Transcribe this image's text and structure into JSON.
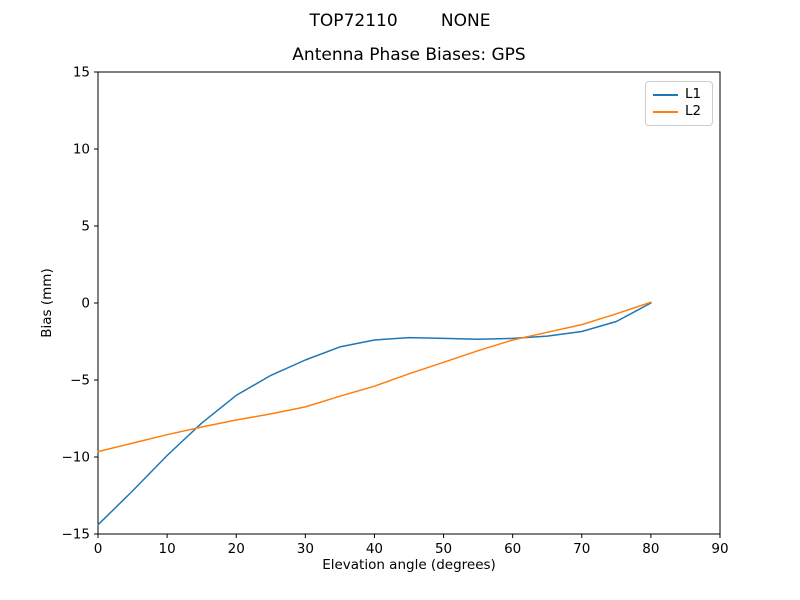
{
  "figure": {
    "suptitle": "TOP72110        NONE"
  },
  "chart_data": {
    "type": "line",
    "title": "Antenna Phase Biases: GPS",
    "xlabel": "Elevation angle (degrees)",
    "ylabel": "Bias (mm)",
    "xlim": [
      0,
      90
    ],
    "ylim": [
      -15,
      15
    ],
    "x_ticks": [
      0,
      10,
      20,
      30,
      40,
      50,
      60,
      70,
      80,
      90
    ],
    "x_tick_labels": [
      "0",
      "10",
      "20",
      "30",
      "40",
      "50",
      "60",
      "70",
      "80",
      "90"
    ],
    "y_ticks": [
      -15,
      -10,
      -5,
      0,
      5,
      10,
      15
    ],
    "y_tick_labels": [
      "−15",
      "−10",
      "−5",
      "0",
      "5",
      "10",
      "15"
    ],
    "grid": false,
    "legend": {
      "position": "upper right"
    },
    "x": [
      0,
      5,
      10,
      15,
      20,
      25,
      30,
      35,
      40,
      45,
      50,
      55,
      60,
      65,
      70,
      75,
      80
    ],
    "series": [
      {
        "name": "L1",
        "color": "#1f77b4",
        "values": [
          -14.4,
          -12.2,
          -9.9,
          -7.8,
          -6.0,
          -4.7,
          -3.7,
          -2.85,
          -2.4,
          -2.25,
          -2.3,
          -2.35,
          -2.3,
          -2.15,
          -1.85,
          -1.2,
          0.0
        ]
      },
      {
        "name": "L2",
        "color": "#ff7f0e",
        "values": [
          -9.65,
          -9.1,
          -8.55,
          -8.05,
          -7.6,
          -7.2,
          -6.75,
          -6.05,
          -5.4,
          -4.6,
          -3.85,
          -3.1,
          -2.4,
          -1.9,
          -1.4,
          -0.7,
          0.05
        ]
      }
    ]
  }
}
